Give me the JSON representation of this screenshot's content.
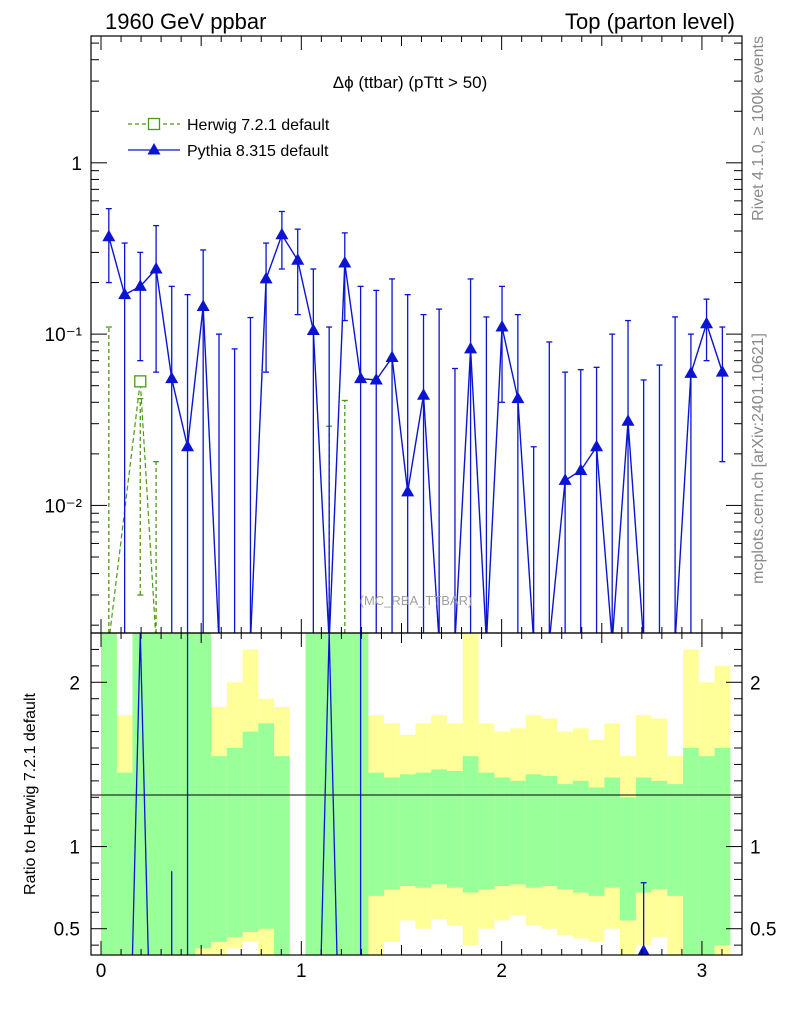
{
  "header": {
    "left": "1960 GeV ppbar",
    "right": "Top (parton level)"
  },
  "side_labels": {
    "right_top": "Rivet 4.1.0, ≥ 100k events",
    "right_bottom": "mcplots.cern.ch [arXiv:2401.10621]"
  },
  "colors": {
    "herwig": "#4a9a14",
    "pythia": "#0a14d2",
    "band_green": "#99ff99",
    "band_yellow": "#ffff99",
    "axis": "#000000",
    "watermark": "#a0a0a0"
  },
  "chart_data": {
    "type": "line",
    "title": "Δϕ (ttbar) (pTtt > 50)",
    "watermark": "(MC_RBA_TTBAR)",
    "legend": [
      {
        "name": "Herwig 7.2.1 default",
        "marker": "open-square",
        "style": "dashed",
        "color": "#4a9a14"
      },
      {
        "name": "Pythia 8.315 default",
        "marker": "filled-triangle",
        "style": "solid",
        "color": "#0a14d2"
      }
    ],
    "legend_position": "top-left",
    "x_range": [
      -0.05,
      3.2
    ],
    "x_ticks": [
      0,
      1,
      2,
      3
    ],
    "main": {
      "yscale": "log",
      "y_range": [
        0.0018,
        5.5
      ],
      "y_ticks": [
        {
          "value": 1,
          "label": "1"
        },
        {
          "value": 0.1,
          "label": "10⁻¹"
        },
        {
          "value": 0.01,
          "label": "10⁻²"
        }
      ]
    },
    "ratio": {
      "ylabel": "Ratio to Herwig 7.2.1 default",
      "y_range": [
        0.34,
        2.3
      ],
      "y_ticks": [
        {
          "value": 0.5,
          "label": "0.5"
        },
        {
          "value": 1,
          "label": "1"
        },
        {
          "value": 2,
          "label": "2"
        }
      ],
      "reference_line": 1,
      "bands": [
        {
          "x": [
            0.0,
            0.079
          ],
          "green": [
            0.34,
            2.3
          ],
          "yellow": [
            0.34,
            2.3
          ]
        },
        {
          "x": [
            0.079,
            0.157
          ],
          "green": [
            0.34,
            1.45
          ],
          "yellow": [
            0.34,
            1.8
          ]
        },
        {
          "x": [
            0.157,
            0.236
          ],
          "green": [
            0.34,
            2.3
          ],
          "yellow": [
            0.34,
            2.3
          ]
        },
        {
          "x": [
            0.236,
            0.314
          ],
          "green": [
            0.34,
            2.3
          ],
          "yellow": [
            0.34,
            2.3
          ]
        },
        {
          "x": [
            0.314,
            0.393
          ],
          "green": [
            0.34,
            2.3
          ],
          "yellow": [
            0.34,
            2.3
          ]
        },
        {
          "x": [
            0.393,
            0.471
          ],
          "green": [
            0.34,
            2.3
          ],
          "yellow": [
            0.34,
            2.3
          ]
        },
        {
          "x": [
            0.471,
            0.55
          ],
          "green": [
            0.38,
            2.3
          ],
          "yellow": [
            0.34,
            2.3
          ]
        },
        {
          "x": [
            0.55,
            0.628
          ],
          "green": [
            0.42,
            1.55
          ],
          "yellow": [
            0.34,
            1.85
          ]
        },
        {
          "x": [
            0.628,
            0.707
          ],
          "green": [
            0.45,
            1.6
          ],
          "yellow": [
            0.38,
            2.0
          ]
        },
        {
          "x": [
            0.707,
            0.785
          ],
          "green": [
            0.48,
            1.7
          ],
          "yellow": [
            0.42,
            2.2
          ]
        },
        {
          "x": [
            0.785,
            0.864
          ],
          "green": [
            0.5,
            1.75
          ],
          "yellow": [
            0.34,
            1.9
          ]
        },
        {
          "x": [
            0.864,
            0.942
          ],
          "green": [
            0.34,
            1.55
          ],
          "yellow": [
            0.34,
            1.85
          ]
        },
        {
          "x": [
            1.021,
            1.099
          ],
          "green": [
            0.34,
            2.3
          ],
          "yellow": [
            0.34,
            2.3
          ]
        },
        {
          "x": [
            1.099,
            1.178
          ],
          "green": [
            0.34,
            2.3
          ],
          "yellow": [
            0.34,
            2.3
          ]
        },
        {
          "x": [
            1.178,
            1.256
          ],
          "green": [
            0.34,
            2.3
          ],
          "yellow": [
            0.34,
            2.3
          ]
        },
        {
          "x": [
            1.256,
            1.335
          ],
          "green": [
            0.34,
            2.3
          ],
          "yellow": [
            0.34,
            2.3
          ]
        },
        {
          "x": [
            1.335,
            1.413
          ],
          "green": [
            0.7,
            1.45
          ],
          "yellow": [
            0.34,
            1.8
          ]
        },
        {
          "x": [
            1.413,
            1.492
          ],
          "green": [
            0.74,
            1.42
          ],
          "yellow": [
            0.42,
            1.75
          ]
        },
        {
          "x": [
            1.492,
            1.57
          ],
          "green": [
            0.76,
            1.44
          ],
          "yellow": [
            0.55,
            1.68
          ]
        },
        {
          "x": [
            1.57,
            1.649
          ],
          "green": [
            0.75,
            1.45
          ],
          "yellow": [
            0.5,
            1.75
          ]
        },
        {
          "x": [
            1.649,
            1.727
          ],
          "green": [
            0.77,
            1.47
          ],
          "yellow": [
            0.56,
            1.8
          ]
        },
        {
          "x": [
            1.727,
            1.806
          ],
          "green": [
            0.75,
            1.46
          ],
          "yellow": [
            0.52,
            1.75
          ]
        },
        {
          "x": [
            1.806,
            1.884
          ],
          "green": [
            0.72,
            1.55
          ],
          "yellow": [
            0.4,
            2.3
          ]
        },
        {
          "x": [
            1.884,
            1.963
          ],
          "green": [
            0.74,
            1.45
          ],
          "yellow": [
            0.5,
            1.75
          ]
        },
        {
          "x": [
            1.963,
            2.041
          ],
          "green": [
            0.76,
            1.42
          ],
          "yellow": [
            0.55,
            1.7
          ]
        },
        {
          "x": [
            2.041,
            2.12
          ],
          "green": [
            0.77,
            1.4
          ],
          "yellow": [
            0.58,
            1.72
          ]
        },
        {
          "x": [
            2.12,
            2.199
          ],
          "green": [
            0.75,
            1.44
          ],
          "yellow": [
            0.52,
            1.8
          ]
        },
        {
          "x": [
            2.199,
            2.277
          ],
          "green": [
            0.76,
            1.43
          ],
          "yellow": [
            0.5,
            1.78
          ]
        },
        {
          "x": [
            2.277,
            2.356
          ],
          "green": [
            0.74,
            1.38
          ],
          "yellow": [
            0.46,
            1.7
          ]
        },
        {
          "x": [
            2.356,
            2.434
          ],
          "green": [
            0.72,
            1.4
          ],
          "yellow": [
            0.44,
            1.72
          ]
        },
        {
          "x": [
            2.434,
            2.513
          ],
          "green": [
            0.7,
            1.36
          ],
          "yellow": [
            0.42,
            1.65
          ]
        },
        {
          "x": [
            2.513,
            2.591
          ],
          "green": [
            0.75,
            1.42
          ],
          "yellow": [
            0.5,
            1.75
          ]
        },
        {
          "x": [
            2.591,
            2.67
          ],
          "green": [
            0.55,
            1.3
          ],
          "yellow": [
            0.34,
            1.55
          ]
        },
        {
          "x": [
            2.67,
            2.748
          ],
          "green": [
            0.72,
            1.42
          ],
          "yellow": [
            0.4,
            1.8
          ]
        },
        {
          "x": [
            2.748,
            2.827
          ],
          "green": [
            0.74,
            1.4
          ],
          "yellow": [
            0.45,
            1.78
          ]
        },
        {
          "x": [
            2.827,
            2.906
          ],
          "green": [
            0.7,
            1.38
          ],
          "yellow": [
            0.34,
            1.55
          ]
        },
        {
          "x": [
            2.906,
            2.984
          ],
          "green": [
            0.34,
            1.6
          ],
          "yellow": [
            0.34,
            2.2
          ]
        },
        {
          "x": [
            2.984,
            3.063
          ],
          "green": [
            0.34,
            1.55
          ],
          "yellow": [
            0.34,
            2.0
          ]
        },
        {
          "x": [
            3.063,
            3.142
          ],
          "green": [
            0.4,
            1.6
          ],
          "yellow": [
            0.34,
            2.1
          ]
        }
      ],
      "pythia_lines": [
        {
          "x": 0.196,
          "y1": 0.34,
          "y2": 2.3,
          "peaked": true,
          "x_left": 0.157,
          "x_right": 0.236
        },
        {
          "x": 0.432,
          "y1": 0.34,
          "y2": 2.3
        },
        {
          "x": 1.139,
          "y1": 0.34,
          "y2": 2.3,
          "peaked": true,
          "x_left": 1.099,
          "x_right": 1.178
        },
        {
          "x": 1.296,
          "y1": 0.34,
          "y2": 2.3
        },
        {
          "x": 0.353,
          "y1": 0.34,
          "y2": 0.85
        }
      ],
      "pythia_marker": {
        "x": 2.709,
        "y": 0.37,
        "err_high": 0.78
      }
    },
    "series": [
      {
        "name": "Herwig 7.2.1 default",
        "color": "#4a9a14",
        "points": [
          {
            "x": 0.039,
            "y": 0.0016,
            "err_high": 0.11
          },
          {
            "x": 0.196,
            "y": 0.053,
            "err_low": 0.003,
            "err_high": 0.042
          },
          {
            "x": 0.275,
            "y": 0.0016,
            "err_high": 0.018
          },
          {
            "x": 1.139,
            "y": 0.0016,
            "err_high": 0.029
          },
          {
            "x": 1.217,
            "y": 0.0016,
            "err_high": 0.041
          }
        ]
      },
      {
        "name": "Pythia 8.315 default",
        "color": "#0a14d2",
        "points": [
          {
            "x": 0.039,
            "y": 0.37,
            "err_low": 0.2,
            "err_high": 0.54
          },
          {
            "x": 0.118,
            "y": 0.17,
            "err_low": 0.0016,
            "err_high": 0.34
          },
          {
            "x": 0.196,
            "y": 0.19,
            "err_low": 0.07,
            "err_high": 0.3
          },
          {
            "x": 0.275,
            "y": 0.24,
            "err_low": 0.06,
            "err_high": 0.43
          },
          {
            "x": 0.353,
            "y": 0.055,
            "err_low": 0.0016,
            "err_high": 0.19
          },
          {
            "x": 0.432,
            "y": 0.022,
            "err_low": 0.0016,
            "err_high": 0.17
          },
          {
            "x": 0.51,
            "y": 0.145,
            "err_low": 0.0016,
            "err_high": 0.31
          },
          {
            "x": 0.589,
            "y": 0.0016,
            "err_high": 0.1
          },
          {
            "x": 0.667,
            "y": 0.0016,
            "err_high": 0.082
          },
          {
            "x": 0.746,
            "y": 0.0016,
            "err_high": 0.125
          },
          {
            "x": 0.824,
            "y": 0.21,
            "err_low": 0.06,
            "err_high": 0.34
          },
          {
            "x": 0.903,
            "y": 0.38,
            "err_low": 0.24,
            "err_high": 0.52
          },
          {
            "x": 0.982,
            "y": 0.27,
            "err_low": 0.13,
            "err_high": 0.41
          },
          {
            "x": 1.06,
            "y": 0.105,
            "err_low": 0.0016,
            "err_high": 0.24
          },
          {
            "x": 1.139,
            "y": 0.0016,
            "err_high": 0.11
          },
          {
            "x": 1.217,
            "y": 0.26,
            "err_low": 0.12,
            "err_high": 0.39
          },
          {
            "x": 1.296,
            "y": 0.055,
            "err_low": 0.0016,
            "err_high": 0.19
          },
          {
            "x": 1.374,
            "y": 0.054,
            "err_low": 0.0016,
            "err_high": 0.18
          },
          {
            "x": 1.453,
            "y": 0.073,
            "err_low": 0.0016,
            "err_high": 0.21
          },
          {
            "x": 1.531,
            "y": 0.012,
            "err_low": 0.0016,
            "err_high": 0.17
          },
          {
            "x": 1.61,
            "y": 0.044,
            "err_low": 0.0016,
            "err_high": 0.13
          },
          {
            "x": 1.688,
            "y": 0.0016,
            "err_high": 0.14
          },
          {
            "x": 1.767,
            "y": 0.0016,
            "err_high": 0.063
          },
          {
            "x": 1.845,
            "y": 0.082,
            "err_low": 0.0016,
            "err_high": 0.21
          },
          {
            "x": 1.924,
            "y": 0.0016,
            "err_high": 0.126
          },
          {
            "x": 2.002,
            "y": 0.11,
            "err_low": 0.04,
            "err_high": 0.19
          },
          {
            "x": 2.081,
            "y": 0.042,
            "err_low": 0.0016,
            "err_high": 0.13
          },
          {
            "x": 2.16,
            "y": 0.0016,
            "err_high": 0.022
          },
          {
            "x": 2.238,
            "y": 0.0016,
            "err_high": 0.09
          },
          {
            "x": 2.317,
            "y": 0.014,
            "err_low": 0.0016,
            "err_high": 0.06
          },
          {
            "x": 2.395,
            "y": 0.016,
            "err_low": 0.0016,
            "err_high": 0.062
          },
          {
            "x": 2.474,
            "y": 0.022,
            "err_low": 0.0016,
            "err_high": 0.064
          },
          {
            "x": 2.552,
            "y": 0.0016,
            "err_high": 0.1
          },
          {
            "x": 2.631,
            "y": 0.031,
            "err_low": 0.0016,
            "err_high": 0.12
          },
          {
            "x": 2.709,
            "y": 0.0016,
            "err_high": 0.054
          },
          {
            "x": 2.788,
            "y": 0.0016,
            "err_high": 0.066
          },
          {
            "x": 2.866,
            "y": 0.0016,
            "err_high": 0.126
          },
          {
            "x": 2.945,
            "y": 0.059,
            "err_low": 0.0016,
            "err_high": 0.1
          },
          {
            "x": 3.023,
            "y": 0.115,
            "err_low": 0.07,
            "err_high": 0.16
          },
          {
            "x": 3.102,
            "y": 0.06,
            "err_low": 0.018,
            "err_high": 0.11
          }
        ]
      }
    ]
  }
}
